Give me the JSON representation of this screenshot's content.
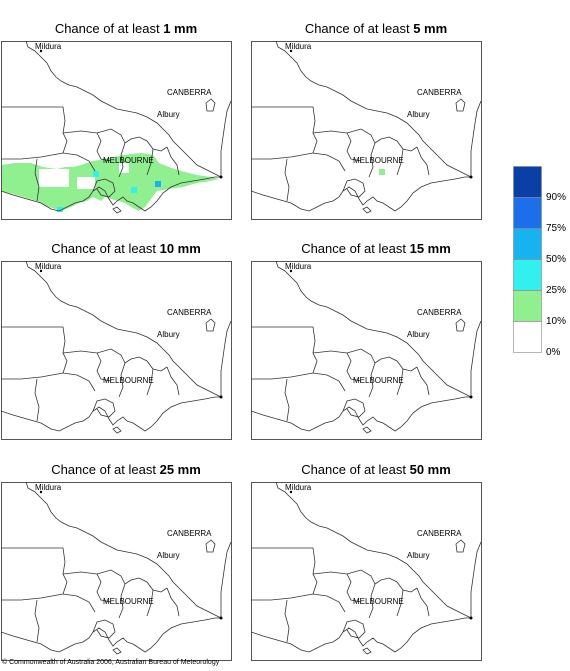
{
  "panels": [
    {
      "title_prefix": "Chance of at least ",
      "amount": "1 mm"
    },
    {
      "title_prefix": "Chance of at least ",
      "amount": "5 mm"
    },
    {
      "title_prefix": "Chance of at least ",
      "amount": "10 mm"
    },
    {
      "title_prefix": "Chance of at least ",
      "amount": "15 mm"
    },
    {
      "title_prefix": "Chance of at least ",
      "amount": "25 mm"
    },
    {
      "title_prefix": "Chance of at least ",
      "amount": "50 mm"
    }
  ],
  "places": {
    "mildura": "Mildura",
    "canberra": "CANBERRA",
    "albury": "Albury",
    "melbourne": "MELBOURNE"
  },
  "legend": {
    "labels": [
      "90%",
      "75%",
      "50%",
      "25%",
      "10%",
      "0%"
    ],
    "colors": [
      "#0a3fa8",
      "#1c6fe8",
      "#17b3f0",
      "#33f0f0",
      "#90f090",
      "#ffffff"
    ]
  },
  "footer": "© Commonwealth of Australia 2006, Australian Bureau of Meteorology"
}
